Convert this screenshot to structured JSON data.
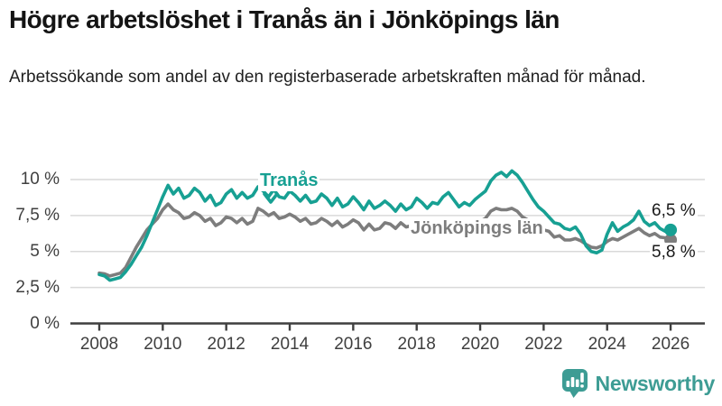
{
  "header": {
    "title": "Högre arbetslöshet i Tranås än i Jönköpings län",
    "subtitle": "Arbetssökande som andel av den registerbaserade arbetskraften månad för månad."
  },
  "chart_data": {
    "type": "line",
    "x_unit": "year (monthly series, one point per 2 months)",
    "x_start": 2008.0,
    "x_step_years": 0.1666667,
    "x_end": 2026.0,
    "xticks": [
      2008,
      2010,
      2012,
      2014,
      2016,
      2018,
      2020,
      2022,
      2024,
      2026
    ],
    "ytick_labels": [
      "0 %",
      "2,5 %",
      "5 %",
      "7,5 %",
      "10 %"
    ],
    "ytick_values": [
      0,
      2.5,
      5,
      7.5,
      10
    ],
    "ylim": [
      0,
      11
    ],
    "grid": true,
    "legend_position": "inline-labels",
    "series": [
      {
        "name": "Jönköpings län",
        "color": "#7d7d7d",
        "end_label": "5,8 %",
        "values": [
          3.5,
          3.45,
          3.3,
          3.4,
          3.5,
          3.9,
          4.6,
          5.3,
          5.9,
          6.5,
          6.9,
          7.3,
          7.9,
          8.3,
          7.9,
          7.7,
          7.3,
          7.4,
          7.7,
          7.5,
          7.1,
          7.3,
          6.8,
          7.0,
          7.4,
          7.3,
          7.0,
          7.3,
          6.9,
          7.1,
          8.0,
          7.8,
          7.5,
          7.7,
          7.3,
          7.4,
          7.6,
          7.4,
          7.1,
          7.3,
          6.9,
          7.0,
          7.3,
          7.1,
          6.8,
          7.1,
          6.7,
          6.9,
          7.2,
          7.0,
          6.5,
          6.9,
          6.5,
          6.6,
          7.0,
          6.9,
          6.6,
          7.0,
          6.7,
          6.8,
          7.1,
          6.9,
          6.5,
          6.9,
          6.6,
          6.7,
          6.9,
          6.7,
          6.5,
          6.9,
          6.7,
          7.0,
          7.1,
          7.3,
          7.8,
          8.0,
          7.9,
          7.9,
          8.0,
          7.8,
          7.4,
          7.2,
          6.8,
          6.6,
          6.5,
          6.4,
          6.0,
          6.1,
          5.8,
          5.8,
          5.9,
          5.75,
          5.5,
          5.3,
          5.25,
          5.4,
          5.7,
          5.9,
          5.8,
          6.0,
          6.2,
          6.4,
          6.6,
          6.3,
          6.1,
          6.25,
          6.0,
          5.95,
          5.8
        ]
      },
      {
        "name": "Tranås",
        "color": "#17a093",
        "end_label": "6,5 %",
        "values": [
          3.4,
          3.3,
          3.0,
          3.1,
          3.2,
          3.6,
          4.1,
          4.7,
          5.3,
          6.1,
          7.0,
          7.9,
          8.8,
          9.6,
          9.0,
          9.4,
          8.7,
          8.9,
          9.4,
          9.1,
          8.5,
          8.9,
          8.2,
          8.4,
          9.0,
          9.3,
          8.7,
          9.1,
          8.7,
          8.9,
          9.5,
          9.2,
          8.8,
          9.3,
          8.8,
          8.7,
          9.2,
          8.9,
          8.5,
          8.9,
          8.4,
          8.5,
          9.0,
          8.7,
          8.2,
          8.7,
          8.1,
          8.3,
          8.8,
          8.4,
          7.9,
          8.5,
          8.0,
          8.2,
          8.5,
          8.2,
          7.8,
          8.3,
          7.9,
          8.1,
          8.7,
          8.4,
          8.0,
          8.4,
          8.3,
          8.8,
          9.1,
          8.6,
          8.1,
          8.4,
          8.2,
          8.6,
          8.9,
          9.2,
          9.9,
          10.3,
          10.5,
          10.2,
          10.6,
          10.3,
          9.8,
          9.2,
          8.6,
          8.1,
          7.8,
          7.4,
          7.0,
          6.9,
          6.6,
          6.5,
          6.7,
          6.2,
          5.4,
          5.0,
          4.9,
          5.1,
          6.2,
          7.0,
          6.4,
          6.7,
          6.9,
          7.2,
          7.8,
          7.1,
          6.8,
          7.0,
          6.6,
          6.4,
          6.5
        ]
      }
    ],
    "annotations": {
      "tranas_label": "Tranås",
      "jonkoping_label": "Jönköpings län",
      "tranas_end_value_label": "6,5 %",
      "jonkoping_end_value_label": "5,8 %"
    }
  },
  "footer": {
    "brand": "Newsworthy",
    "logo_icon": "bar-chart-speech-bubble-icon"
  },
  "colors": {
    "tranas_line": "#17a093",
    "jonkoping_line": "#7d7d7d",
    "gridline": "#d9d9d9",
    "axis": "#3f3f3f",
    "brand_teal": "#3d9c94",
    "title_text": "#141414"
  }
}
